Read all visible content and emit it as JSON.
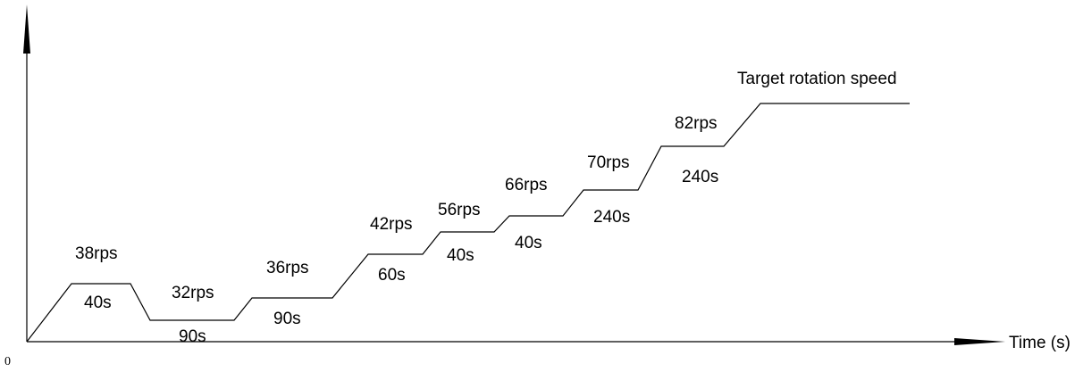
{
  "origin_label": "0",
  "x_axis_label": "Time (s)",
  "colors": {
    "line": "#000000",
    "background": "#ffffff"
  },
  "stages": [
    {
      "speed": "38rps",
      "duration": "40s"
    },
    {
      "speed": "32rps",
      "duration": "90s"
    },
    {
      "speed": "36rps",
      "duration": "90s"
    },
    {
      "speed": "42rps",
      "duration": "60s"
    },
    {
      "speed": "56rps",
      "duration": "40s"
    },
    {
      "speed": "66rps",
      "duration": "40s"
    },
    {
      "speed": "70rps",
      "duration": "240s"
    },
    {
      "speed": "82rps",
      "duration": "240s"
    }
  ],
  "final_stage": {
    "label": "Target rotation speed"
  }
}
